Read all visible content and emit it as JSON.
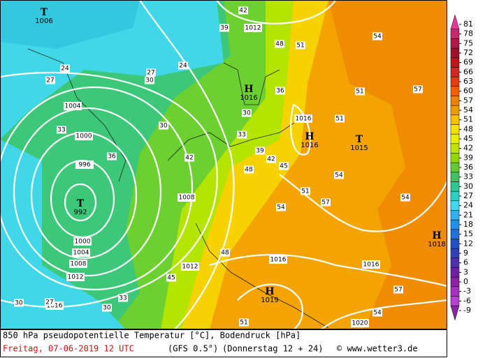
{
  "header": {
    "title": "850 hPa pseudopotentielle Temperatur [°C], Bodendruck [hPa]"
  },
  "footer": {
    "date": "Freitag, 07-06-2019  12 UTC",
    "model": "(GFS 0.5°)",
    "run": "(Donnerstag 12 + 24)",
    "copyright": "© www.wetter3.de"
  },
  "legend": {
    "ticks": [
      81,
      78,
      75,
      72,
      69,
      66,
      63,
      60,
      57,
      54,
      51,
      48,
      45,
      42,
      39,
      36,
      33,
      30,
      27,
      24,
      21,
      18,
      15,
      12,
      9,
      6,
      3,
      0,
      -3,
      -6,
      -9
    ],
    "colors": [
      "#e8389c",
      "#c82870",
      "#b01848",
      "#a01028",
      "#b81818",
      "#d02820",
      "#e04010",
      "#f06000",
      "#f08000",
      "#f09c00",
      "#f8c000",
      "#f8e000",
      "#e8f000",
      "#c0e400",
      "#90d800",
      "#60cc30",
      "#40c060",
      "#30c890",
      "#28d0c8",
      "#40d8f0",
      "#30b0f0",
      "#2090e8",
      "#2070d8",
      "#2050c8",
      "#3040b8",
      "#5030b0",
      "#7020a8",
      "#9020a8",
      "#a830c0",
      "#b840d0",
      "#8828a8"
    ]
  },
  "centers": [
    {
      "letter": "T",
      "value": 1006
    },
    {
      "letter": "T",
      "value": 992
    },
    {
      "letter": "H",
      "value": 1016
    },
    {
      "letter": "H",
      "value": 1016
    },
    {
      "letter": "T",
      "value": 1015
    },
    {
      "letter": "H",
      "value": 1018
    },
    {
      "letter": "H",
      "value": 1019
    }
  ],
  "isobar_labels": [
    1012,
    1004,
    1000,
    996,
    1000,
    1004,
    1008,
    1012,
    1016,
    1008,
    1012,
    1016,
    1016,
    1016,
    1020
  ],
  "temperature_labels": [
    42,
    39,
    48,
    51,
    24,
    27,
    30,
    27,
    24,
    30,
    36,
    33,
    39,
    42,
    45,
    48,
    51,
    54,
    57,
    51,
    54,
    51,
    33,
    30,
    36,
    42,
    48,
    54,
    57,
    54,
    30,
    27,
    30,
    33,
    45,
    51,
    54,
    57
  ]
}
